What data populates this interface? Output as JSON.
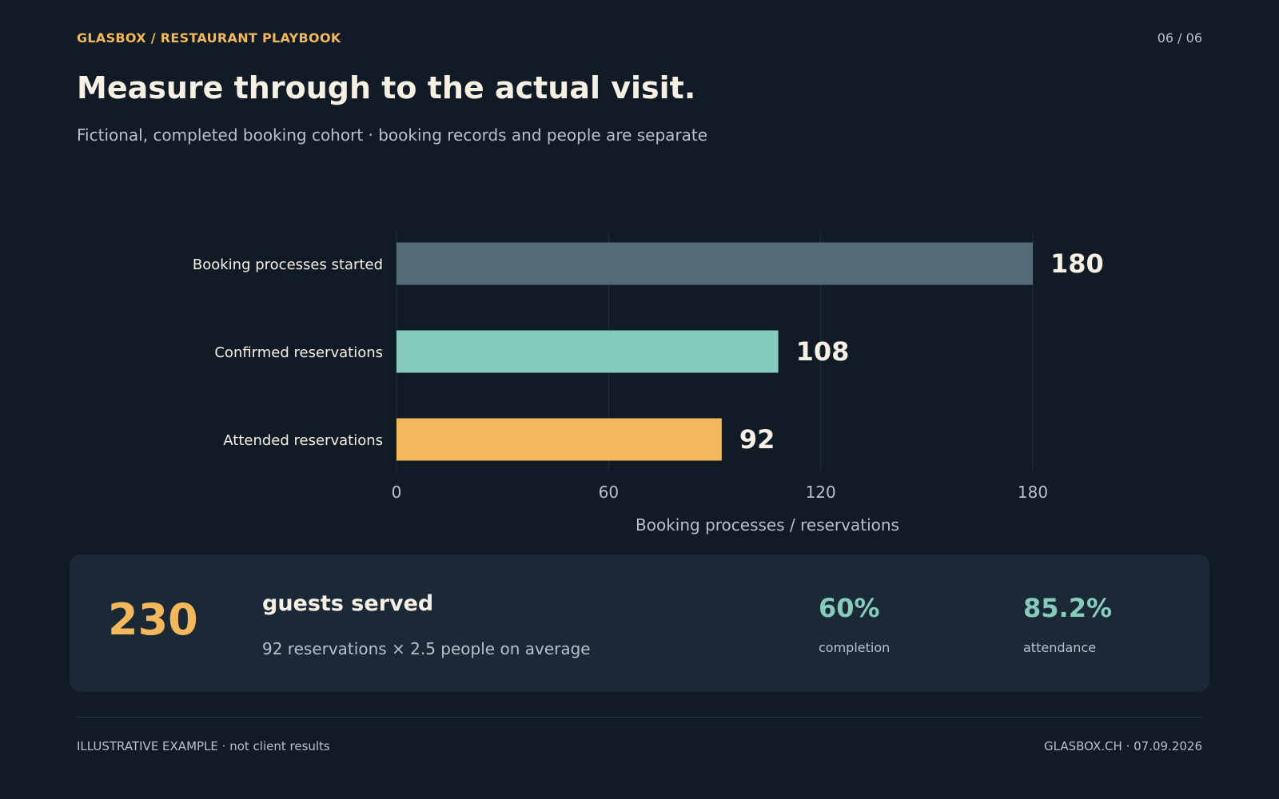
{
  "header": {
    "brand": "GLASBOX  /  RESTAURANT PLAYBOOK",
    "page_counter": "06  /  06",
    "title": "Measure through to the actual visit.",
    "subtitle": "Fictional, completed booking cohort · booking records and people are separate"
  },
  "chart_data": {
    "type": "bar",
    "orientation": "horizontal",
    "categories": [
      "Booking processes started",
      "Confirmed reservations",
      "Attended reservations"
    ],
    "values": [
      180,
      108,
      92
    ],
    "value_labels": [
      "180",
      "108",
      "92"
    ],
    "colors": [
      "#546b7a",
      "#85ccbd",
      "#f2b85b"
    ],
    "xlabel": "Booking processes / reservations",
    "xlim": [
      0,
      180
    ],
    "xticks": [
      0,
      60,
      120,
      180
    ],
    "xtick_labels": [
      "0",
      "60",
      "120",
      "180"
    ],
    "grid": true
  },
  "kpi": {
    "big_value": "230",
    "title": "guests served",
    "description": "92 reservations × 2.5 people on average",
    "stats": [
      {
        "value": "60%",
        "label": "completion"
      },
      {
        "value": "85.2%",
        "label": "attendance"
      }
    ]
  },
  "footer": {
    "left": "ILLUSTRATIVE EXAMPLE · not client results",
    "right": "GLASBOX.CH  ·  07.09.2026"
  }
}
